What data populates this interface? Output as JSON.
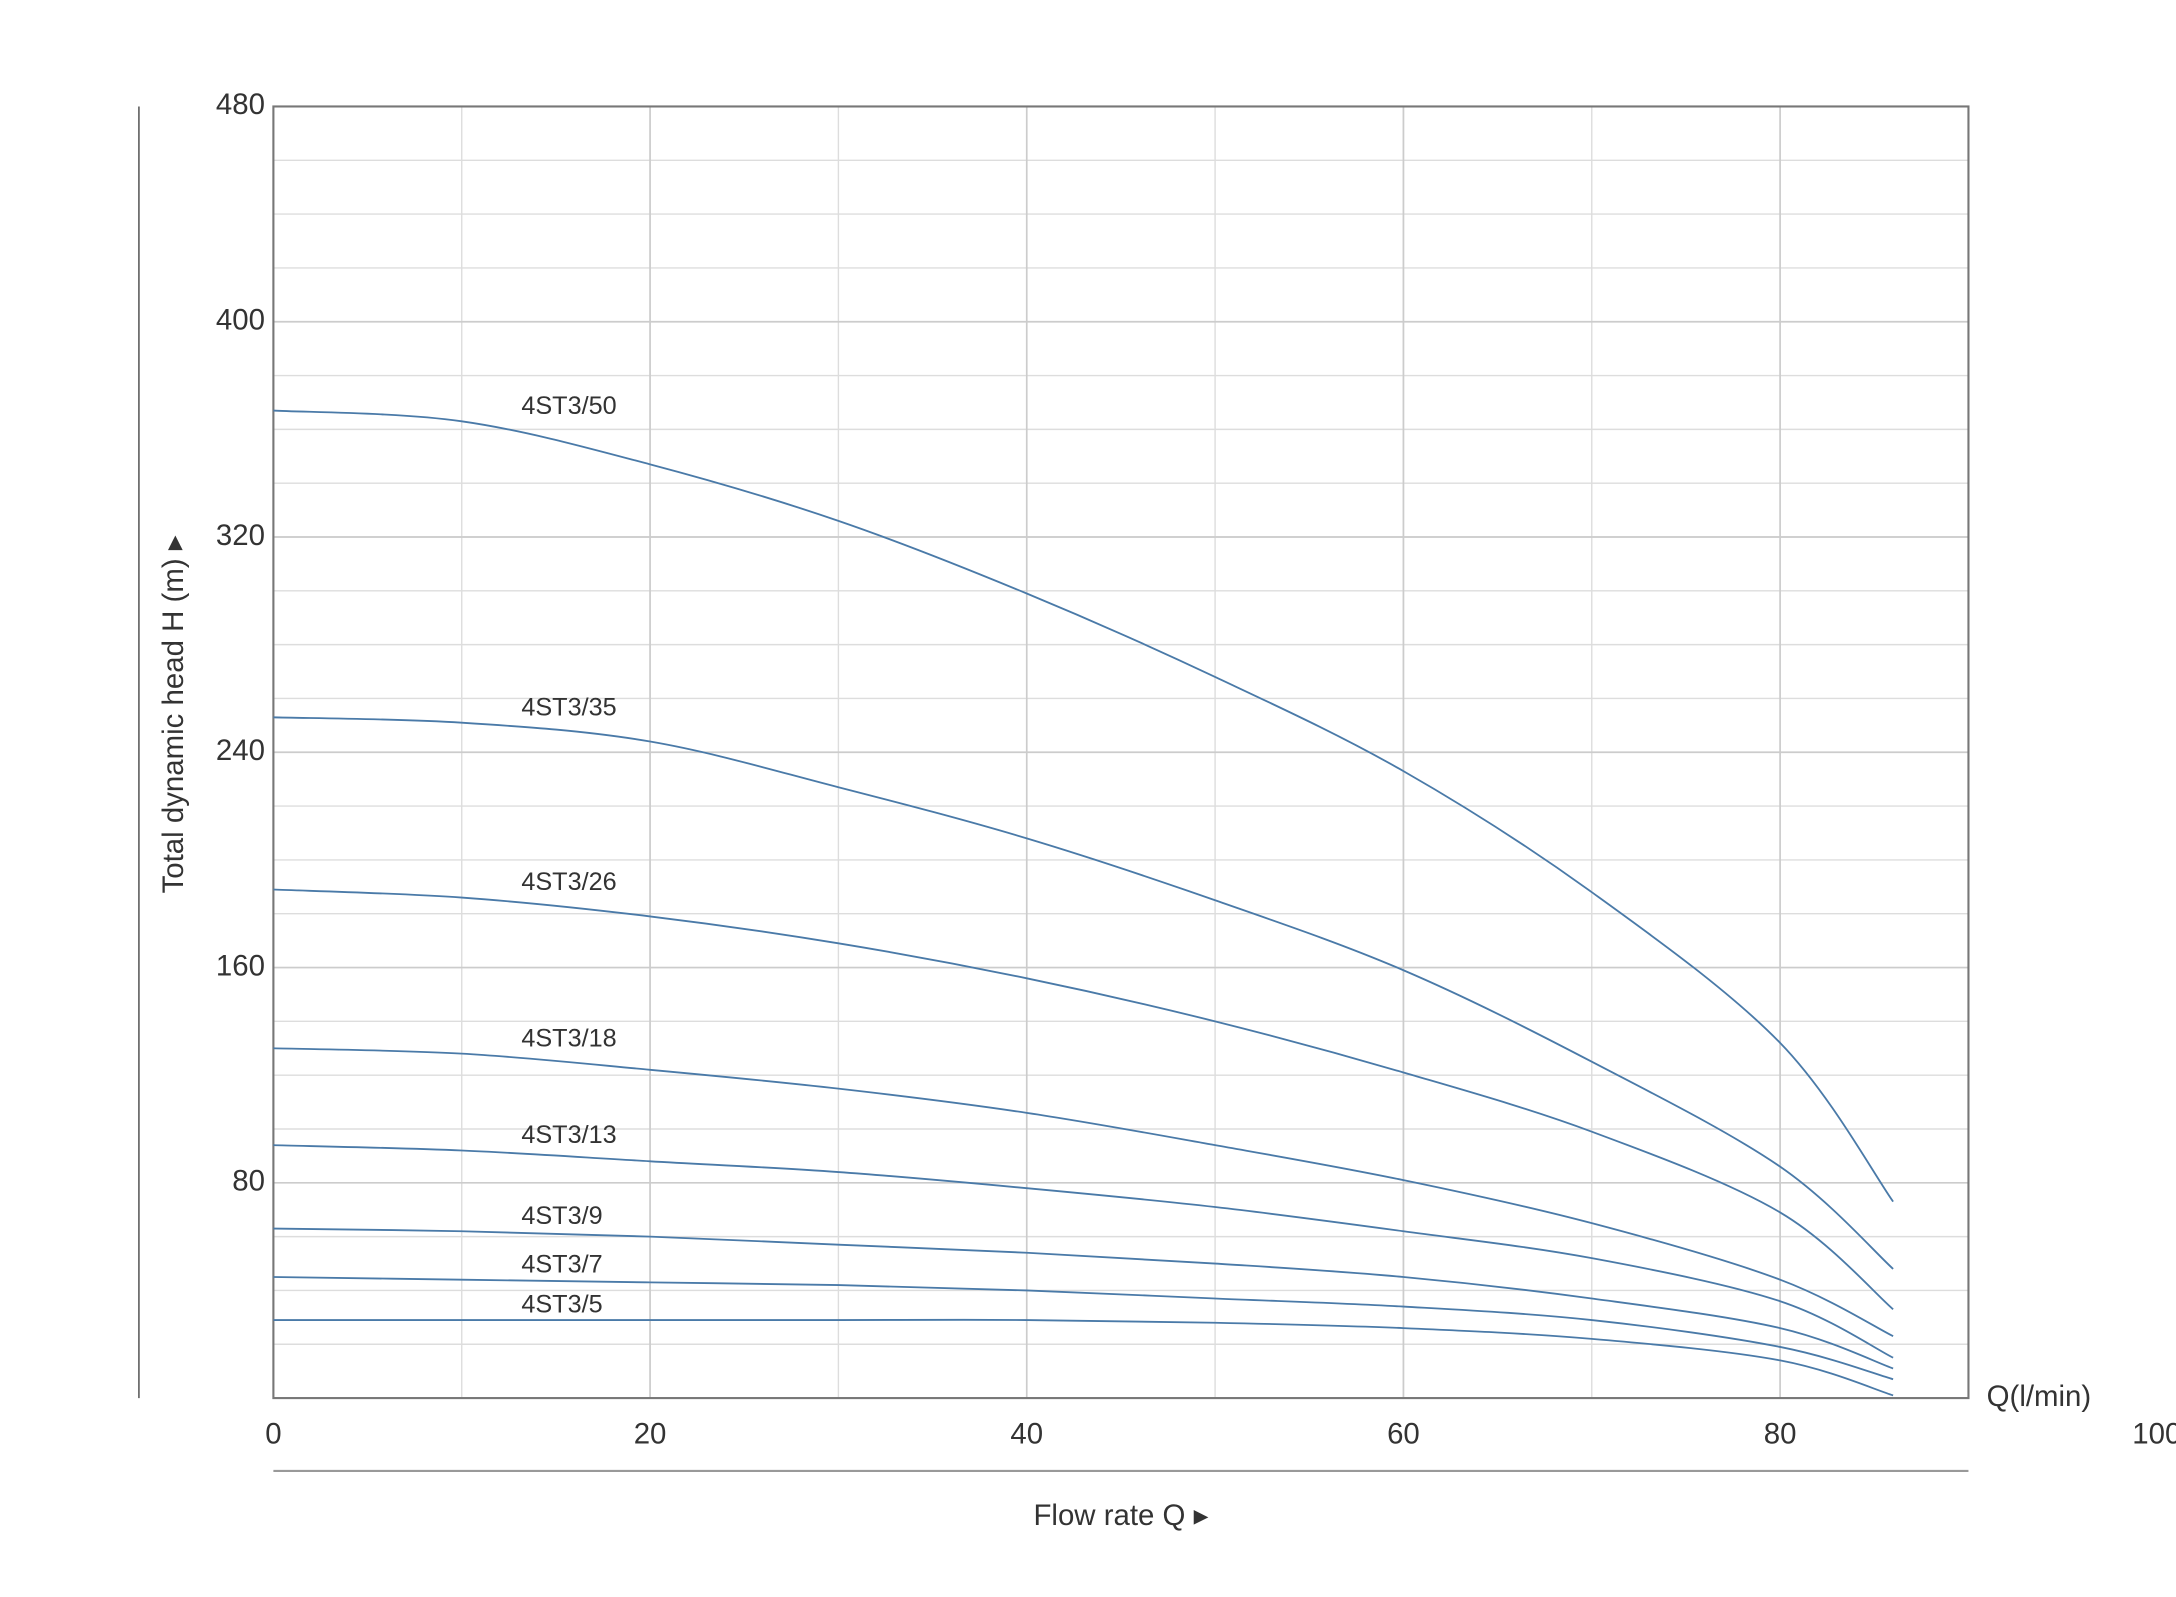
{
  "chart_data": {
    "type": "line",
    "xlabel": "Flow rate Q ▸",
    "ylabel": "Total dynamic head H (m) ▸",
    "x_unit_label": "Q(l/min)",
    "x": [
      0,
      10,
      20,
      30,
      40,
      50,
      60,
      70,
      80,
      86
    ],
    "series": [
      {
        "name": "4ST3/50",
        "color": "#4a7aa8",
        "values": [
          367,
          363,
          347,
          326,
          299,
          268,
          233,
          188,
          132,
          73
        ]
      },
      {
        "name": "4ST3/35",
        "color": "#4a7aa8",
        "values": [
          253,
          251,
          244,
          227,
          208,
          185,
          159,
          125,
          86,
          48
        ]
      },
      {
        "name": "4ST3/26",
        "color": "#4a7aa8",
        "values": [
          189,
          186,
          179,
          169,
          156,
          140,
          121,
          99,
          69,
          33
        ]
      },
      {
        "name": "4ST3/18",
        "color": "#4a7aa8",
        "values": [
          130,
          128,
          122,
          115,
          106,
          94,
          81,
          65,
          44,
          23
        ]
      },
      {
        "name": "4ST3/13",
        "color": "#4a7aa8",
        "values": [
          94,
          92,
          88,
          84,
          78,
          71,
          62,
          52,
          36,
          15
        ]
      },
      {
        "name": "4ST3/9",
        "color": "#4a7aa8",
        "values": [
          63,
          62,
          60,
          57,
          54,
          50,
          45,
          37,
          26,
          11
        ]
      },
      {
        "name": "4ST3/7",
        "color": "#4a7aa8",
        "values": [
          45,
          44,
          43,
          42,
          40,
          37,
          34,
          29,
          19,
          7
        ]
      },
      {
        "name": "4ST3/5",
        "color": "#4a7aa8",
        "values": [
          29,
          29,
          29,
          29,
          29,
          28,
          26,
          22,
          14,
          1
        ]
      }
    ],
    "xlim": [
      0,
      90
    ],
    "xticks": [
      0,
      20,
      40,
      60,
      80,
      100
    ],
    "ylim": [
      0,
      480
    ],
    "yticks": [
      80,
      160,
      240,
      320,
      400,
      480
    ],
    "grid": true
  }
}
